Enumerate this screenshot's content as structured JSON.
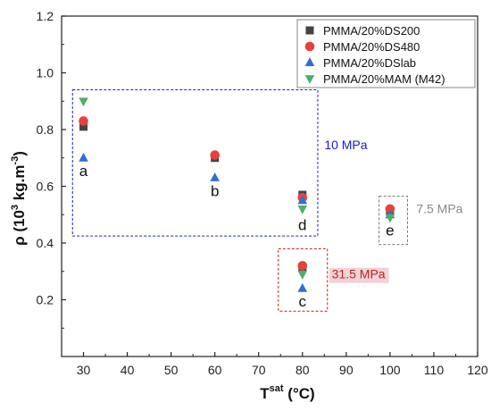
{
  "chart_data": {
    "type": "scatter",
    "xlabel": {
      "main": "T",
      "sup": "sat",
      "unit": " (°C)"
    },
    "ylabel": {
      "main": "ρ (10",
      "sup": "3",
      "unit": " kg.m",
      "sup2": "-3",
      "close": ")"
    },
    "xlim": [
      25,
      120
    ],
    "ylim": [
      0.0,
      1.2
    ],
    "xticks": [
      30,
      40,
      50,
      60,
      70,
      80,
      90,
      100,
      110,
      120
    ],
    "yticks": [
      0.2,
      0.4,
      0.6,
      0.8,
      1.0,
      1.2
    ],
    "legend_position": "top-right",
    "series": [
      {
        "name": "PMMA/20%DS200",
        "marker": "square",
        "color": "#444444",
        "points": [
          {
            "x": 30,
            "y": 0.81
          },
          {
            "x": 60,
            "y": 0.7
          },
          {
            "x": 80,
            "y": 0.57
          },
          {
            "x": 100,
            "y": 0.51
          },
          {
            "x": 80,
            "y": 0.31
          }
        ]
      },
      {
        "name": "PMMA/20%DS480",
        "marker": "circle",
        "color": "#e8413c",
        "points": [
          {
            "x": 30,
            "y": 0.83
          },
          {
            "x": 60,
            "y": 0.71
          },
          {
            "x": 80,
            "y": 0.56
          },
          {
            "x": 100,
            "y": 0.52
          },
          {
            "x": 80,
            "y": 0.32
          }
        ]
      },
      {
        "name": "PMMA/20%DSlab",
        "marker": "triangle-up",
        "color": "#2f6fd6",
        "points": [
          {
            "x": 30,
            "y": 0.7
          },
          {
            "x": 60,
            "y": 0.63
          },
          {
            "x": 80,
            "y": 0.55
          },
          {
            "x": 100,
            "y": 0.5
          },
          {
            "x": 80,
            "y": 0.24
          }
        ]
      },
      {
        "name": "PMMA/20%MAM (M42)",
        "marker": "triangle-down",
        "color": "#4caf6a",
        "points": [
          {
            "x": 30,
            "y": 0.9
          },
          {
            "x": 80,
            "y": 0.52
          },
          {
            "x": 100,
            "y": 0.49
          },
          {
            "x": 80,
            "y": 0.29
          }
        ]
      }
    ],
    "point_labels": [
      {
        "text": "a",
        "x": 30,
        "y": 0.655
      },
      {
        "text": "b",
        "x": 60,
        "y": 0.585
      },
      {
        "text": "d",
        "x": 80,
        "y": 0.465
      },
      {
        "text": "c",
        "x": 80,
        "y": 0.195
      },
      {
        "text": "e",
        "x": 100,
        "y": 0.445
      }
    ],
    "annotations": [
      {
        "text": "10 MPa",
        "color": "#1a1acc",
        "x": 85,
        "y": 0.73,
        "box": {
          "x0": 27.5,
          "x1": 83.5,
          "y0": 0.425,
          "y1": 0.94
        },
        "box_color": "#2020cc"
      },
      {
        "text": "7.5 MPa",
        "color": "#888888",
        "x": 106,
        "y": 0.505,
        "box": {
          "x0": 97.5,
          "x1": 104,
          "y0": 0.395,
          "y1": 0.565
        },
        "box_color": "#777777"
      },
      {
        "text": "31.5 MPa",
        "color": "#b5281e",
        "x": 86.7,
        "y": 0.275,
        "box": {
          "x0": 74.5,
          "x1": 85.7,
          "y0": 0.16,
          "y1": 0.38
        },
        "box_color": "#b5281e",
        "highlight": "#f3d1d8"
      }
    ]
  }
}
